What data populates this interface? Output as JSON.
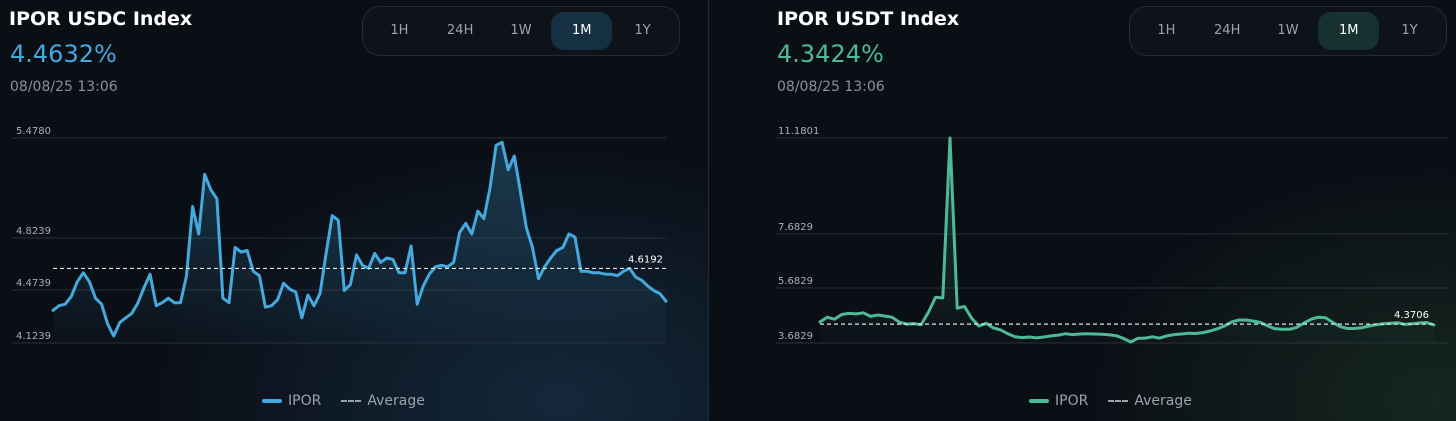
{
  "charts": [
    {
      "title": "IPOR USDC Index",
      "value": "4.4632%",
      "timestamp": "08/08/25 13:06",
      "accent": "#45a9dd",
      "tabs": [
        "1H",
        "24H",
        "1W",
        "1M",
        "1Y"
      ],
      "active_tab": "1M",
      "legend": {
        "series": "IPOR",
        "average": "Average"
      },
      "average_label": "4.6192"
    },
    {
      "title": "IPOR USDT Index",
      "value": "4.3424%",
      "timestamp": "08/08/25 13:06",
      "accent": "#4fb996",
      "tabs": [
        "1H",
        "24H",
        "1W",
        "1M",
        "1Y"
      ],
      "active_tab": "1M",
      "legend": {
        "series": "IPOR",
        "average": "Average"
      },
      "average_label": "4.3706"
    }
  ],
  "chart_data": [
    {
      "type": "area",
      "title": "IPOR USDC Index",
      "xlabel": "",
      "ylabel": "",
      "y_ticks": [
        "5.4780",
        "4.8239",
        "4.4739",
        "4.1239"
      ],
      "y_tick_values": [
        5.478,
        4.8239,
        4.4739,
        4.1239
      ],
      "ylim": [
        4.1239,
        5.478
      ],
      "average": 4.6192,
      "grid": true,
      "legend_position": "bottom-center",
      "series": [
        {
          "name": "IPOR",
          "values": [
            4.34,
            4.37,
            4.38,
            4.43,
            4.53,
            4.59,
            4.53,
            4.42,
            4.38,
            4.25,
            4.17,
            4.26,
            4.29,
            4.32,
            4.39,
            4.49,
            4.58,
            4.37,
            4.39,
            4.42,
            4.39,
            4.39,
            4.57,
            5.03,
            4.85,
            5.24,
            5.14,
            5.08,
            4.42,
            4.39,
            4.76,
            4.73,
            4.74,
            4.6,
            4.57,
            4.36,
            4.37,
            4.41,
            4.52,
            4.48,
            4.46,
            4.29,
            4.44,
            4.37,
            4.45,
            4.72,
            4.97,
            4.94,
            4.47,
            4.51,
            4.71,
            4.64,
            4.62,
            4.72,
            4.66,
            4.69,
            4.68,
            4.59,
            4.59,
            4.77,
            4.38,
            4.5,
            4.58,
            4.63,
            4.64,
            4.63,
            4.66,
            4.86,
            4.92,
            4.85,
            5.0,
            4.95,
            5.15,
            5.43,
            5.45,
            5.27,
            5.36,
            5.13,
            4.89,
            4.76,
            4.55,
            4.63,
            4.69,
            4.74,
            4.76,
            4.85,
            4.83,
            4.6,
            4.6,
            4.59,
            4.59,
            4.58,
            4.58,
            4.57,
            4.6,
            4.62,
            4.56,
            4.54,
            4.5,
            4.47,
            4.45,
            4.4
          ]
        }
      ]
    },
    {
      "type": "area",
      "title": "IPOR USDT Index",
      "xlabel": "",
      "ylabel": "",
      "y_ticks": [
        "11.1801",
        "7.6829",
        "5.6829",
        "3.6829"
      ],
      "y_tick_values": [
        11.1801,
        7.6829,
        5.6829,
        3.6829
      ],
      "ylim": [
        3.6829,
        11.1801
      ],
      "average": 4.3706,
      "grid": true,
      "legend_position": "bottom-center",
      "series": [
        {
          "name": "IPOR",
          "values": [
            4.45,
            4.62,
            4.55,
            4.72,
            4.76,
            4.74,
            4.78,
            4.65,
            4.7,
            4.66,
            4.62,
            4.44,
            4.37,
            4.39,
            4.35,
            4.8,
            5.35,
            5.32,
            11.18,
            4.95,
            5.01,
            4.58,
            4.3,
            4.4,
            4.23,
            4.16,
            4.02,
            3.91,
            3.88,
            3.9,
            3.87,
            3.9,
            3.94,
            3.97,
            4.02,
            3.99,
            4.01,
            4.02,
            4.01,
            4.0,
            3.98,
            3.95,
            3.85,
            3.72,
            3.85,
            3.86,
            3.91,
            3.86,
            3.94,
            3.99,
            4.01,
            4.04,
            4.03,
            4.06,
            4.12,
            4.2,
            4.3,
            4.45,
            4.52,
            4.52,
            4.48,
            4.43,
            4.3,
            4.2,
            4.18,
            4.18,
            4.25,
            4.41,
            4.55,
            4.62,
            4.6,
            4.43,
            4.28,
            4.21,
            4.21,
            4.24,
            4.3,
            4.35,
            4.38,
            4.4,
            4.42,
            4.36,
            4.38,
            4.41,
            4.43,
            4.34
          ]
        }
      ]
    }
  ]
}
